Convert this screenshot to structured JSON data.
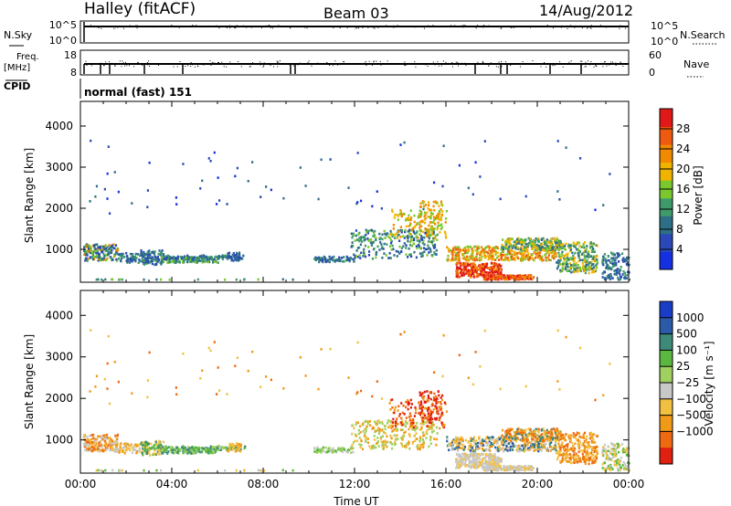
{
  "header": {
    "station": "Halley (fitACF)",
    "beam": "Beam 03",
    "date": "14/Aug/2012"
  },
  "aux_panels": {
    "nsky_label": "N.Sky",
    "nsky_ticks": [
      "10^5",
      "10^0"
    ],
    "nsearch_label": "N.Search",
    "nsearch_ticks": [
      "10^5",
      "10^0"
    ],
    "freq_label_1": "Freq.",
    "freq_label_2": "[MHz]",
    "freq_ticks": [
      "18",
      "8"
    ],
    "nave_label": "Nave",
    "nave_ticks": [
      "60",
      "0"
    ],
    "cpid_label": "CPID",
    "cpid_text": "normal (fast) 151"
  },
  "chart_data": [
    {
      "type": "heatmap",
      "name": "power-panel",
      "ylabel": "Slant Range [km]",
      "xlabel": "",
      "yticks": [
        "1000",
        "2000",
        "3000",
        "4000"
      ],
      "ylim": [
        200,
        4600
      ],
      "xlim_hours": [
        0,
        24
      ],
      "colorbar_label": "Power [dB]",
      "colorbar_ticks": [
        "4",
        "8",
        "12",
        "16",
        "20",
        "24",
        "28"
      ],
      "colorbar_range": [
        0,
        32
      ],
      "colors": [
        "#1530e0",
        "#2a48b8",
        "#2d6f86",
        "#3f9a6a",
        "#7ac82e",
        "#f0b400",
        "#f08a00",
        "#ee5a10",
        "#e01818"
      ]
    },
    {
      "type": "heatmap",
      "name": "velocity-panel",
      "ylabel": "Slant Range [km]",
      "xlabel": "Time UT",
      "yticks": [
        "1000",
        "2000",
        "3000",
        "4000"
      ],
      "ylim": [
        200,
        4600
      ],
      "xticks": [
        "00:00",
        "04:00",
        "08:00",
        "12:00",
        "16:00",
        "20:00",
        "00:00"
      ],
      "colorbar_label": "Velocity [m s⁻¹]",
      "colorbar_ticks": [
        "1000",
        "500",
        "100",
        "25",
        "−25",
        "−100",
        "−500",
        "−1000"
      ],
      "colors": [
        "#1a3dc8",
        "#2a5aa8",
        "#3d8a78",
        "#5ab840",
        "#9fd060",
        "#c8c8c8",
        "#f2c040",
        "#f09a18",
        "#ee6a10",
        "#e02010"
      ]
    }
  ]
}
